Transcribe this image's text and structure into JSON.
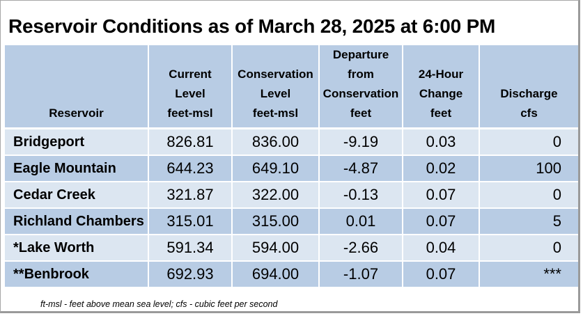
{
  "title": "Reservoir Conditions as of March 28, 2025 at 6:00 PM",
  "table": {
    "headers": [
      {
        "lines": [
          "Reservoir"
        ]
      },
      {
        "lines": [
          "Current",
          "Level",
          "feet-msl"
        ]
      },
      {
        "lines": [
          "Conservation",
          "Level",
          "feet-msl"
        ]
      },
      {
        "lines": [
          "Departure",
          "from",
          "Conservation",
          "feet"
        ]
      },
      {
        "lines": [
          "24-Hour",
          "Change",
          "feet"
        ]
      },
      {
        "lines": [
          "Discharge",
          "cfs"
        ]
      }
    ],
    "rows": [
      {
        "name": "Bridgeport",
        "current": "826.81",
        "conservation": "836.00",
        "departure": "-9.19",
        "change": "0.03",
        "discharge": "0"
      },
      {
        "name": "Eagle Mountain",
        "current": "644.23",
        "conservation": "649.10",
        "departure": "-4.87",
        "change": "0.02",
        "discharge": "100"
      },
      {
        "name": "Cedar Creek",
        "current": "321.87",
        "conservation": "322.00",
        "departure": "-0.13",
        "change": "0.07",
        "discharge": "0"
      },
      {
        "name": "Richland Chambers",
        "current": "315.01",
        "conservation": "315.00",
        "departure": "0.01",
        "change": "0.07",
        "discharge": "5"
      },
      {
        "name": "*Lake Worth",
        "current": "591.34",
        "conservation": "594.00",
        "departure": "-2.66",
        "change": "0.04",
        "discharge": "0"
      },
      {
        "name": "**Benbrook",
        "current": "692.93",
        "conservation": "694.00",
        "departure": "-1.07",
        "change": "0.07",
        "discharge": "***"
      }
    ]
  },
  "footnote": "ft-msl - feet above mean sea level; cfs - cubic feet per second",
  "colors": {
    "header_bg": "#b8cce4",
    "row_light": "#dce6f1",
    "row_dark": "#b8cce4"
  }
}
